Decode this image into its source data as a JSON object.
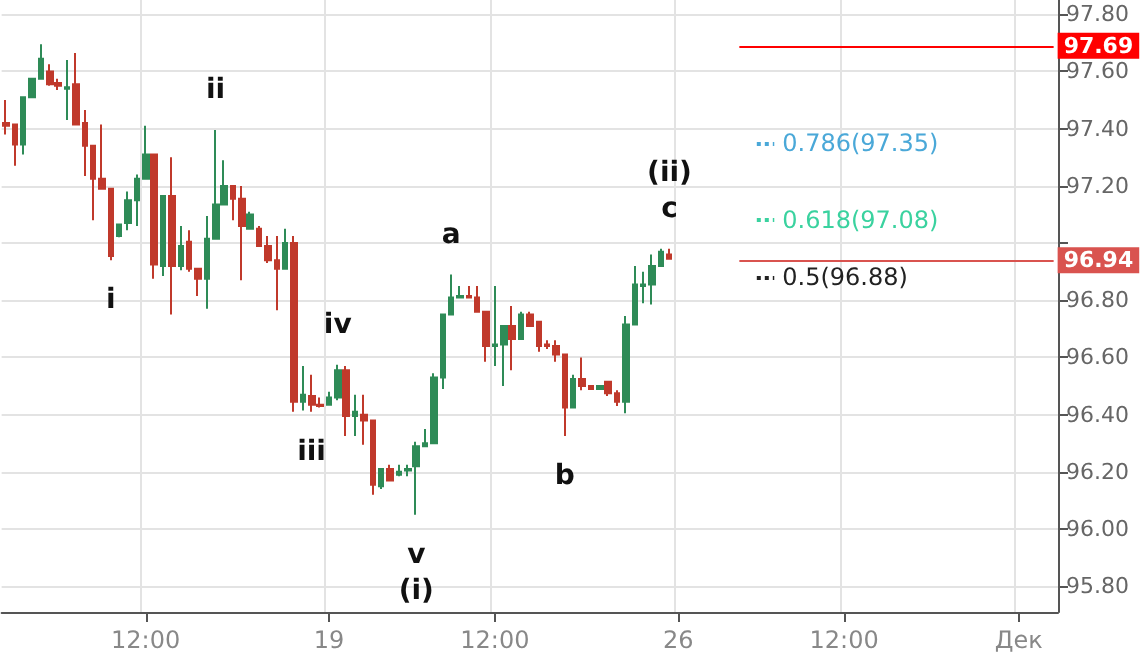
{
  "chart_data": {
    "type": "candlestick",
    "categories": [
      null,
      null,
      null,
      null,
      null,
      null,
      null,
      null,
      null,
      null,
      null,
      null,
      null,
      null,
      null,
      null,
      "12:00",
      null,
      null,
      null,
      null,
      null,
      null,
      null,
      null,
      null,
      null,
      null,
      null,
      null,
      null,
      null,
      null,
      null,
      null,
      null,
      null,
      "19",
      null,
      null,
      null,
      null,
      null,
      null,
      null,
      null,
      null,
      null,
      null,
      null,
      null,
      null,
      null,
      null,
      null,
      null,
      "12:00",
      null,
      null,
      null,
      null,
      null,
      null,
      null,
      null,
      null,
      null,
      null,
      null,
      null,
      null,
      null,
      null,
      null,
      null,
      null,
      null,
      "26",
      null,
      null,
      null,
      null,
      null,
      null,
      null,
      null,
      null,
      null,
      null,
      null,
      null,
      null,
      null,
      null,
      null,
      null,
      "12:00",
      null,
      null,
      null,
      null,
      null,
      null,
      null,
      null,
      null,
      null,
      null,
      null,
      null,
      null,
      null,
      null,
      null,
      null,
      null,
      "Дек",
      null,
      null,
      null,
      null
    ],
    "ohlc": [
      [
        97.42,
        97.5,
        97.38,
        97.41
      ],
      [
        97.415,
        97.415,
        97.27,
        97.345
      ],
      [
        97.345,
        97.51,
        97.31,
        97.51
      ],
      [
        97.51,
        97.575,
        97.51,
        97.575
      ],
      [
        97.575,
        97.695,
        97.575,
        97.645
      ],
      [
        97.6,
        97.625,
        97.55,
        97.555
      ],
      [
        97.56,
        97.575,
        97.535,
        97.55
      ],
      [
        97.54,
        97.64,
        97.43,
        97.545
      ],
      [
        97.555,
        97.665,
        97.415,
        97.415
      ],
      [
        97.42,
        97.465,
        97.235,
        97.34
      ],
      [
        97.34,
        97.34,
        97.08,
        97.225
      ],
      [
        97.225,
        97.415,
        97.19,
        97.19
      ],
      [
        97.19,
        97.19,
        96.94,
        96.955
      ],
      [
        97.025,
        97.065,
        97.02,
        97.065
      ],
      [
        97.07,
        97.18,
        97.045,
        97.15
      ],
      [
        97.15,
        97.24,
        97.06,
        97.225
      ],
      [
        97.225,
        97.41,
        97.225,
        97.31
      ],
      [
        97.31,
        97.31,
        96.875,
        96.925
      ],
      [
        96.92,
        97.165,
        96.885,
        97.165
      ],
      [
        97.165,
        97.3,
        96.75,
        96.92
      ],
      [
        96.92,
        97.06,
        96.905,
        96.99
      ],
      [
        97.005,
        97.045,
        96.9,
        96.91
      ],
      [
        96.91,
        96.91,
        96.815,
        96.875
      ],
      [
        96.875,
        97.095,
        96.77,
        97.015
      ],
      [
        97.015,
        97.395,
        97.015,
        97.135
      ],
      [
        97.135,
        97.29,
        97.135,
        97.2
      ],
      [
        97.2,
        97.2,
        97.08,
        97.155
      ],
      [
        97.155,
        97.2,
        96.87,
        97.06
      ],
      [
        97.05,
        97.11,
        97.05,
        97.1
      ],
      [
        97.05,
        97.06,
        96.99,
        96.99
      ],
      [
        96.99,
        97.025,
        96.93,
        96.94
      ],
      [
        96.94,
        97.025,
        96.765,
        96.91
      ],
      [
        96.91,
        97.05,
        96.91,
        97.0
      ],
      [
        97.0,
        97.025,
        96.41,
        96.445
      ],
      [
        96.445,
        96.57,
        96.415,
        96.47
      ],
      [
        96.465,
        96.54,
        96.41,
        96.435
      ],
      [
        96.435,
        96.46,
        96.425,
        96.43
      ],
      [
        96.435,
        96.48,
        96.435,
        96.46
      ],
      [
        96.46,
        96.575,
        96.45,
        96.555
      ],
      [
        96.555,
        96.57,
        96.325,
        96.395
      ],
      [
        96.395,
        96.47,
        96.325,
        96.41
      ],
      [
        96.4,
        96.47,
        96.295,
        96.38
      ],
      [
        96.38,
        96.38,
        96.12,
        96.155
      ],
      [
        96.15,
        96.21,
        96.14,
        96.21
      ],
      [
        96.21,
        96.225,
        96.17,
        96.17
      ],
      [
        96.19,
        96.225,
        96.185,
        96.2
      ],
      [
        96.205,
        96.225,
        96.185,
        96.21
      ],
      [
        96.22,
        96.305,
        96.05,
        96.29
      ],
      [
        96.29,
        96.35,
        96.29,
        96.3
      ],
      [
        96.3,
        96.545,
        96.3,
        96.53
      ],
      [
        96.53,
        96.75,
        96.49,
        96.75
      ],
      [
        96.75,
        96.89,
        96.75,
        96.81
      ],
      [
        96.81,
        96.85,
        96.81,
        96.815
      ],
      [
        96.815,
        96.85,
        96.81,
        96.81
      ],
      [
        96.81,
        96.85,
        96.76,
        96.76
      ],
      [
        96.76,
        96.76,
        96.585,
        96.64
      ],
      [
        96.64,
        96.85,
        96.57,
        96.645
      ],
      [
        96.645,
        96.71,
        96.5,
        96.71
      ],
      [
        96.71,
        96.78,
        96.555,
        96.665
      ],
      [
        96.665,
        96.76,
        96.665,
        96.75
      ],
      [
        96.75,
        96.76,
        96.71,
        96.71
      ],
      [
        96.725,
        96.725,
        96.62,
        96.64
      ],
      [
        96.645,
        96.66,
        96.63,
        96.64
      ],
      [
        96.64,
        96.66,
        96.585,
        96.61
      ],
      [
        96.61,
        96.61,
        96.325,
        96.425
      ],
      [
        96.425,
        96.54,
        96.425,
        96.525
      ],
      [
        96.525,
        96.6,
        96.485,
        96.5
      ],
      [
        96.5,
        96.5,
        96.49,
        96.49
      ],
      [
        96.49,
        96.5,
        96.49,
        96.5
      ],
      [
        96.515,
        96.515,
        96.465,
        96.475
      ],
      [
        96.475,
        96.485,
        96.43,
        96.445
      ],
      [
        96.445,
        96.745,
        96.405,
        96.715
      ],
      [
        96.715,
        96.92,
        96.715,
        96.855
      ],
      [
        96.85,
        96.9,
        96.79,
        96.855
      ],
      [
        96.855,
        96.96,
        96.785,
        96.92
      ],
      [
        96.92,
        96.98,
        96.92,
        96.97
      ],
      [
        96.96,
        96.98,
        96.945,
        96.945
      ],
      null,
      null,
      null,
      null,
      null,
      null,
      null,
      null,
      null,
      null,
      null,
      null,
      null,
      null,
      null,
      null,
      null,
      null,
      null,
      null,
      null,
      null,
      null,
      null,
      null,
      null,
      null,
      null,
      null,
      null,
      null,
      null,
      null,
      null,
      null,
      null,
      null,
      null,
      null,
      null,
      null,
      null,
      null,
      null
    ],
    "colors": [
      "#c0392b",
      "#c0392b",
      "#2e8b57",
      "#2e8b57",
      "#2e8b57",
      "#c0392b",
      "#c0392b",
      "#2e8b57",
      "#c0392b",
      "#c0392b",
      "#c0392b",
      "#c0392b",
      "#c0392b",
      "#2e8b57",
      "#2e8b57",
      "#2e8b57",
      "#2e8b57",
      "#c0392b",
      "#2e8b57",
      "#c0392b",
      "#2e8b57",
      "#c0392b",
      "#c0392b",
      "#2e8b57",
      "#2e8b57",
      "#2e8b57",
      "#c0392b",
      "#c0392b",
      "#2e8b57",
      "#c0392b",
      "#c0392b",
      "#c0392b",
      "#2e8b57",
      "#c0392b",
      "#2e8b57",
      "#c0392b",
      "#c0392b",
      "#2e8b57",
      "#2e8b57",
      "#c0392b",
      "#2e8b57",
      "#c0392b",
      "#c0392b",
      "#2e8b57",
      "#c0392b",
      "#2e8b57",
      "#2e8b57",
      "#2e8b57",
      "#2e8b57",
      "#2e8b57",
      "#2e8b57",
      "#2e8b57",
      "#2e8b57",
      "#c0392b",
      "#c0392b",
      "#c0392b",
      "#2e8b57",
      "#2e8b57",
      "#c0392b",
      "#2e8b57",
      "#c0392b",
      "#c0392b",
      "#c0392b",
      "#c0392b",
      "#c0392b",
      "#2e8b57",
      "#c0392b",
      "#c0392b",
      "#2e8b57",
      "#c0392b",
      "#c0392b",
      "#2e8b57",
      "#2e8b57",
      "#2e8b57",
      "#2e8b57",
      "#2e8b57",
      "#c0392b",
      null,
      null,
      null,
      null,
      null,
      null,
      null,
      null,
      null,
      null,
      null,
      null,
      null,
      null,
      null,
      null,
      null,
      null,
      null,
      null,
      null,
      null,
      null,
      null,
      null,
      null,
      null,
      null,
      null,
      null,
      null,
      null,
      null,
      null,
      null,
      null,
      null,
      null,
      null,
      null,
      null,
      null,
      null,
      null
    ],
    "ylim": [
      95.71,
      97.85
    ],
    "yticks": [
      {
        "value": 95.8,
        "label": "95.80"
      },
      {
        "value": 96.0,
        "label": "96.00"
      },
      {
        "value": 96.2,
        "label": "96.20"
      },
      {
        "value": 96.4,
        "label": "96.40"
      },
      {
        "value": 96.6,
        "label": "96.60"
      },
      {
        "value": 96.8,
        "label": "96.80"
      },
      {
        "value": 97.0,
        "label": null
      },
      {
        "value": 97.2,
        "label": "97.20"
      },
      {
        "value": 97.4,
        "label": "97.40"
      },
      {
        "value": 97.6,
        "label": "97.60"
      },
      {
        "value": 97.8,
        "label": "97.80"
      }
    ],
    "grid": true,
    "ref_lines": [
      {
        "axis": "y",
        "value": 97.69,
        "label": "97.69",
        "color": "#ff0000",
        "line_style": "solid"
      },
      {
        "axis": "y",
        "value": 96.94,
        "label": "96.94",
        "color": "#d9534f",
        "line_style": "solid"
      },
      {
        "axis": "y",
        "value": 97.35,
        "label": "0.786(97.35)",
        "color": "#4aa8d8",
        "line_style": "dotted"
      },
      {
        "axis": "y",
        "value": 97.08,
        "label": "0.618(97.08)",
        "color": "#3ad29f",
        "line_style": "dotted"
      },
      {
        "axis": "y",
        "value": 96.88,
        "label": "0.5(96.88)",
        "color": "#222222",
        "line_style": "dotted"
      }
    ],
    "annotations": [
      {
        "text": "i",
        "y": 96.94
      },
      {
        "text": "ii",
        "y": 97.395
      },
      {
        "text": "iii",
        "y": 96.41
      },
      {
        "text": "iv",
        "y": 96.575
      },
      {
        "text": "v",
        "y": 96.05
      },
      {
        "text": "(i)",
        "y": 96.05
      },
      {
        "text": "a",
        "y": 96.89
      },
      {
        "text": "b",
        "y": 96.325
      },
      {
        "text": "c",
        "y": 96.98
      },
      {
        "text": "(ii)",
        "y": 96.98
      }
    ]
  }
}
